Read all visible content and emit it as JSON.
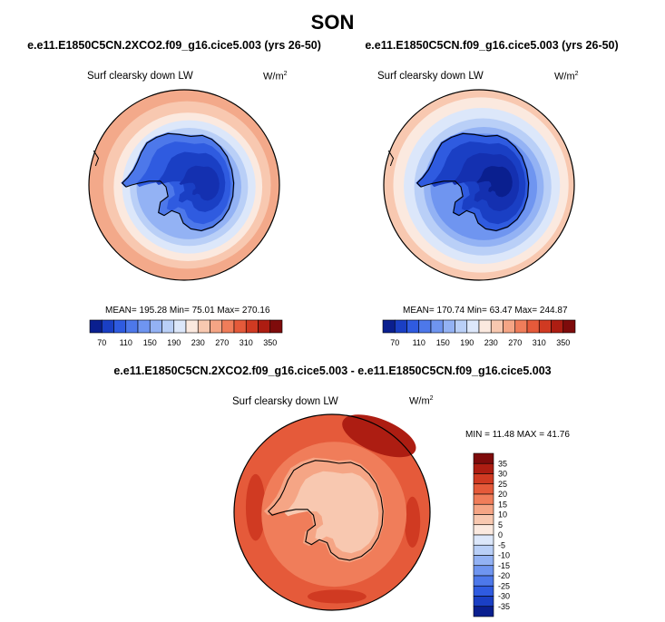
{
  "page": {
    "season": "SON"
  },
  "panels": [
    {
      "case_title": "e.e11.E1850C5CN.2XCO2.f09_g16.cice5.003 (yrs 26-50)",
      "variable": "Surf clearsky down LW",
      "units": "W/m",
      "units_exp": "2",
      "stats": "MEAN= 195.28  Min=  75.01  Max= 270.16"
    },
    {
      "case_title": "e.e11.E1850C5CN.f09_g16.cice5.003 (yrs 26-50)",
      "variable": "Surf clearsky down LW",
      "units": "W/m",
      "units_exp": "2",
      "stats": "MEAN= 170.74  Min=  63.47  Max= 244.87"
    }
  ],
  "diff_panel": {
    "title": "e.e11.E1850C5CN.2XCO2.f09_g16.cice5.003 - e.e11.E1850C5CN.f09_g16.cice5.003",
    "variable": "Surf clearsky down LW",
    "units": "W/m",
    "units_exp": "2",
    "stats": "MIN = 11.48 MAX = 41.76"
  },
  "chart_data": [
    {
      "type": "heatmap",
      "projection": "south-polar-stereographic",
      "title": "e.e11.E1850C5CN.2XCO2.f09_g16.cice5.003 (yrs 26-50)",
      "variable": "Surf clearsky down LW",
      "units": "W/m2",
      "mean": 195.28,
      "min": 75.01,
      "max": 270.16,
      "colorbar": {
        "orientation": "horizontal",
        "levels": [
          70,
          90,
          110,
          130,
          150,
          170,
          190,
          210,
          230,
          250,
          270,
          290,
          310,
          330,
          350
        ],
        "tick_labels": [
          "70",
          "110",
          "150",
          "190",
          "230",
          "270",
          "310",
          "350"
        ],
        "colors": [
          "#0a1f8f",
          "#1a3fc4",
          "#2f5be0",
          "#4d78ea",
          "#6f95f0",
          "#93b2f4",
          "#b9cff7",
          "#dce7fa",
          "#fbe9df",
          "#f8c8b0",
          "#f5a585",
          "#f07d5a",
          "#e55a3a",
          "#d03a22",
          "#ad1d12",
          "#7e0b0b"
        ]
      }
    },
    {
      "type": "heatmap",
      "projection": "south-polar-stereographic",
      "title": "e.e11.E1850C5CN.f09_g16.cice5.003 (yrs 26-50)",
      "variable": "Surf clearsky down LW",
      "units": "W/m2",
      "mean": 170.74,
      "min": 63.47,
      "max": 244.87,
      "colorbar": {
        "orientation": "horizontal",
        "levels": [
          70,
          90,
          110,
          130,
          150,
          170,
          190,
          210,
          230,
          250,
          270,
          290,
          310,
          330,
          350
        ],
        "tick_labels": [
          "70",
          "110",
          "150",
          "190",
          "230",
          "270",
          "310",
          "350"
        ],
        "colors": [
          "#0a1f8f",
          "#1a3fc4",
          "#2f5be0",
          "#4d78ea",
          "#6f95f0",
          "#93b2f4",
          "#b9cff7",
          "#dce7fa",
          "#fbe9df",
          "#f8c8b0",
          "#f5a585",
          "#f07d5a",
          "#e55a3a",
          "#d03a22",
          "#ad1d12",
          "#7e0b0b"
        ]
      }
    },
    {
      "type": "heatmap",
      "projection": "south-polar-stereographic",
      "title": "e.e11.E1850C5CN.2XCO2.f09_g16.cice5.003 - e.e11.E1850C5CN.f09_g16.cice5.003",
      "variable": "Surf clearsky down LW",
      "units": "W/m2",
      "min": 11.48,
      "max": 41.76,
      "colorbar": {
        "orientation": "vertical",
        "levels": [
          -35,
          -30,
          -25,
          -20,
          -15,
          -10,
          -5,
          0,
          5,
          10,
          15,
          20,
          25,
          30,
          35
        ],
        "tick_labels": [
          "35",
          "30",
          "25",
          "20",
          "15",
          "10",
          "5",
          "0",
          "-5",
          "-10",
          "-15",
          "-20",
          "-25",
          "-30",
          "-35"
        ],
        "colors": [
          "#0a1f8f",
          "#1a3fc4",
          "#2f5be0",
          "#4d78ea",
          "#6f95f0",
          "#93b2f4",
          "#b9cff7",
          "#dce7fa",
          "#fbe9df",
          "#f8c8b0",
          "#f5a585",
          "#f07d5a",
          "#e55a3a",
          "#d03a22",
          "#ad1d12",
          "#7e0b0b"
        ]
      }
    }
  ]
}
